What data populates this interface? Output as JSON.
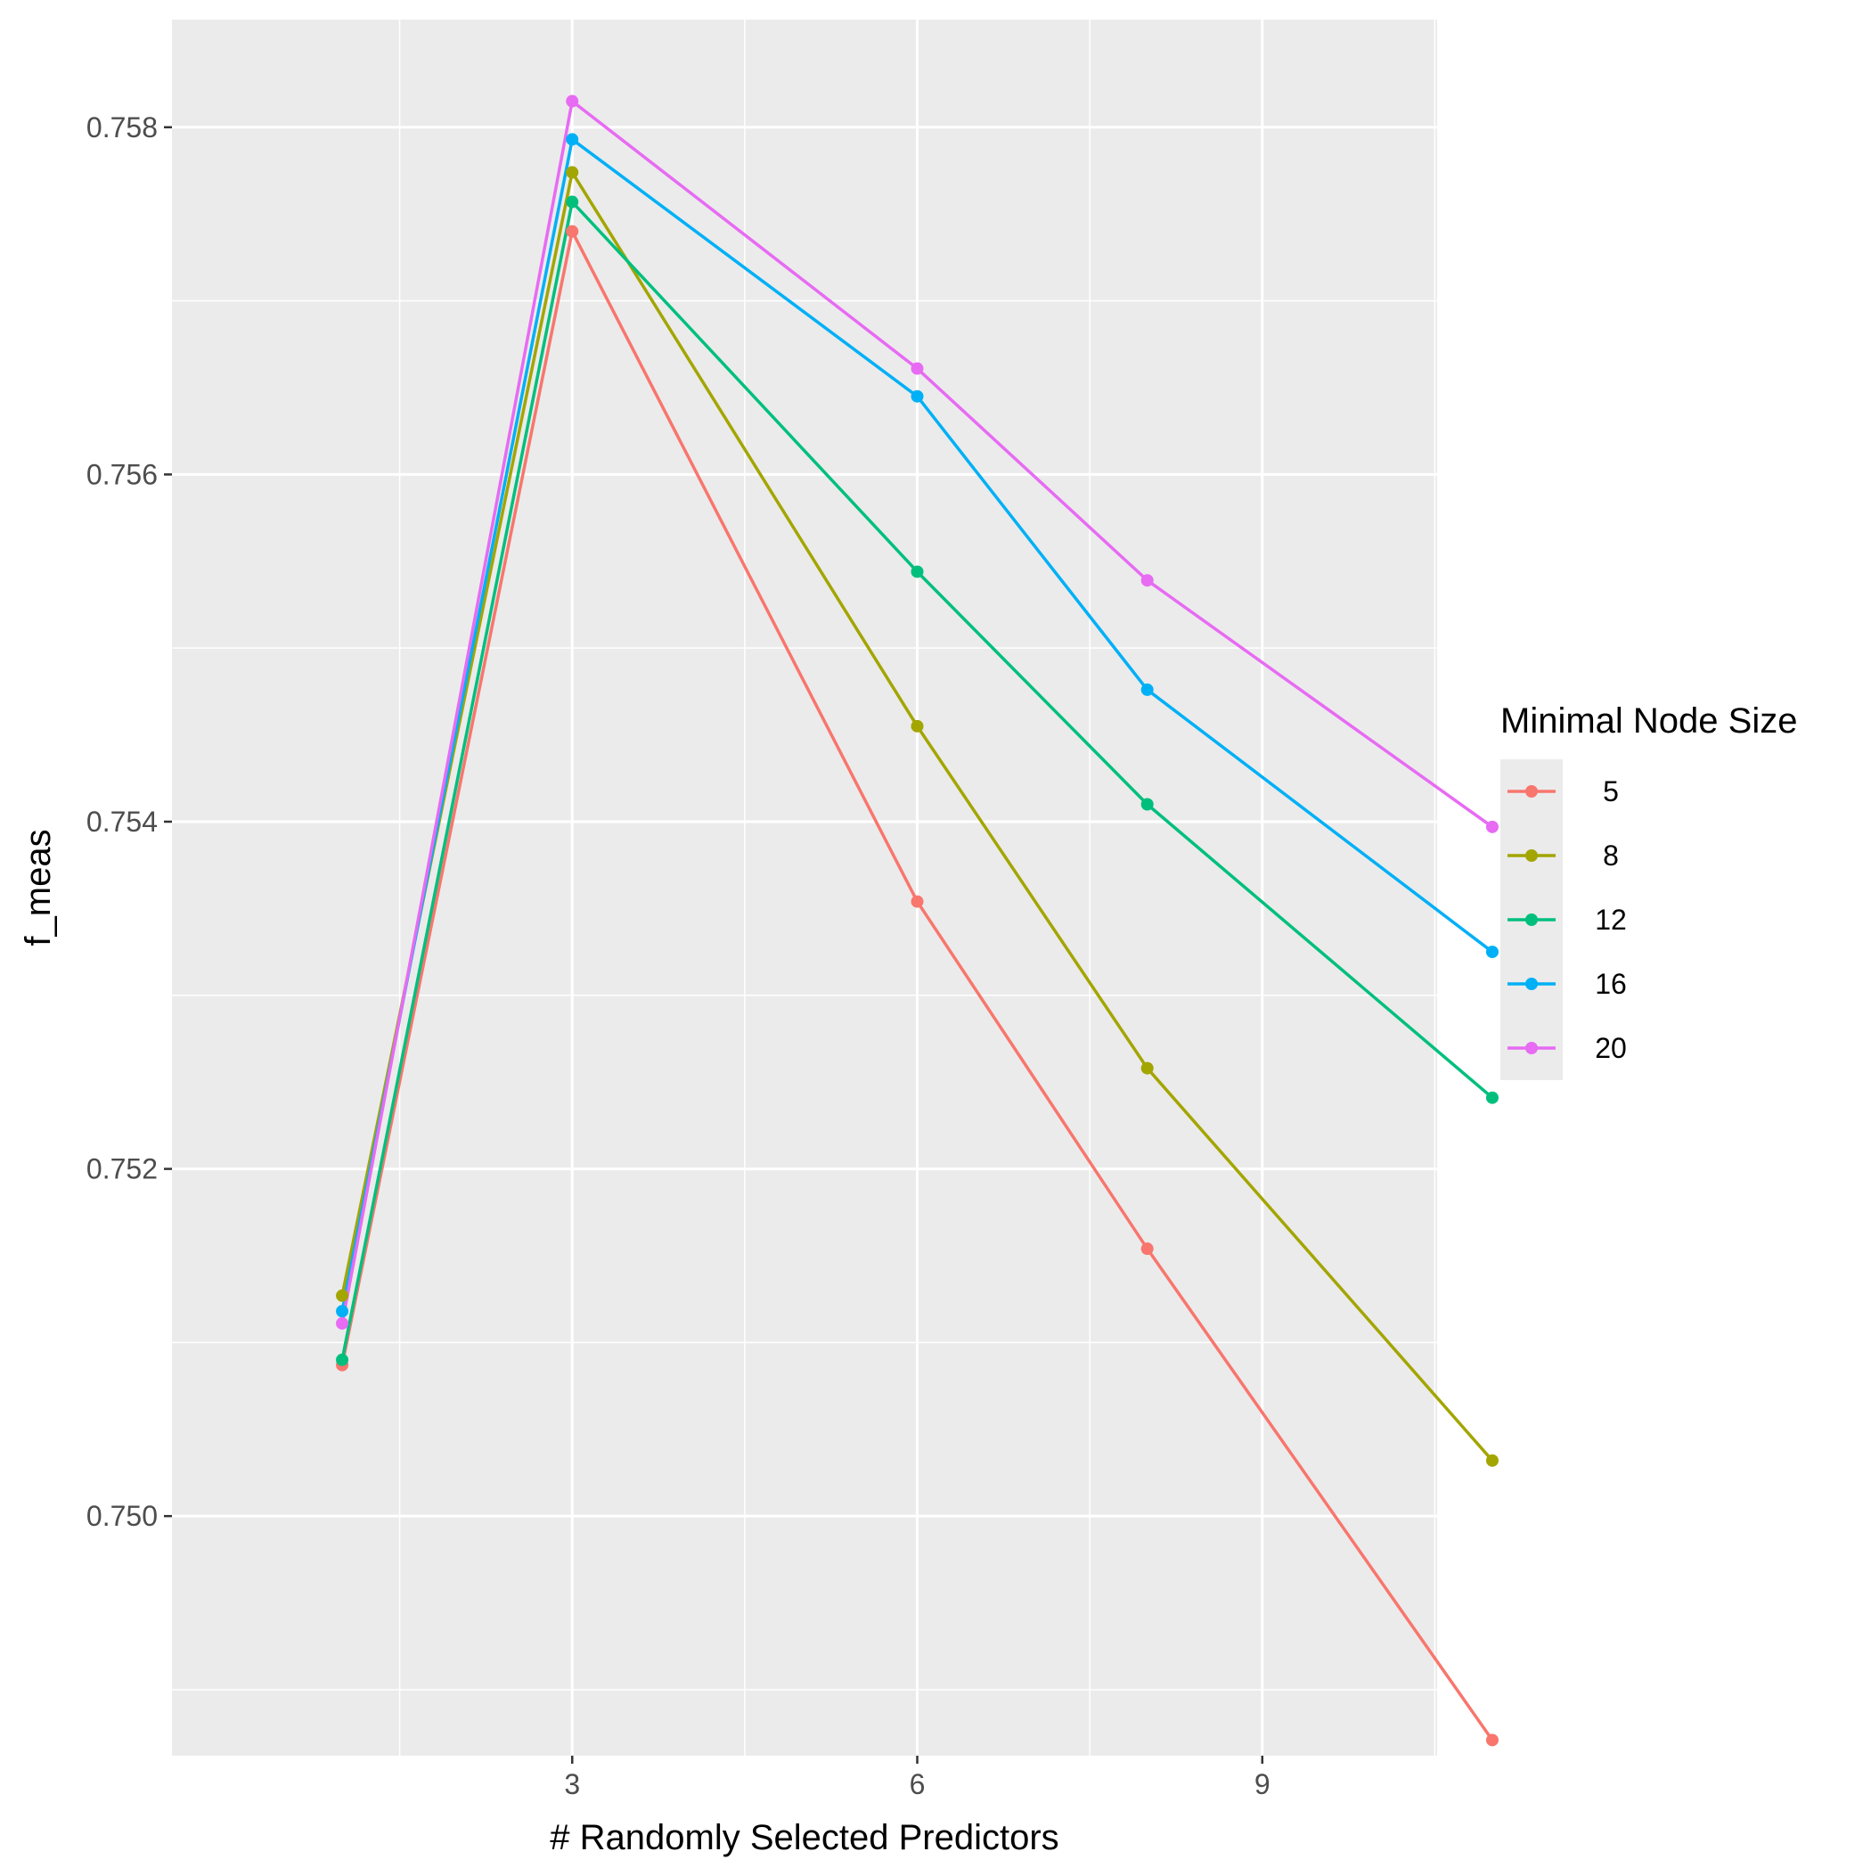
{
  "chart_data": {
    "type": "line",
    "title": "",
    "xlabel": "# Randomly Selected Predictors",
    "ylabel": "f_meas",
    "x": [
      1,
      3,
      6,
      8,
      11
    ],
    "xlim": [
      -0.48,
      10.52
    ],
    "ylim": [
      0.74862,
      0.75862
    ],
    "x_ticks": [
      3,
      6,
      9
    ],
    "x_tick_labels": [
      "3",
      "6",
      "9"
    ],
    "x_minor_ticks": [
      1.5,
      4.5,
      7.5,
      10.5
    ],
    "y_ticks": [
      0.75,
      0.752,
      0.754,
      0.756,
      0.758
    ],
    "y_tick_labels": [
      "0.750",
      "0.752",
      "0.754",
      "0.756",
      "0.758"
    ],
    "y_minor_ticks": [
      0.749,
      0.751,
      0.753,
      0.755,
      0.757
    ],
    "grid": true,
    "panel_background": "#ebebeb",
    "legend": {
      "title": "Minimal Node Size",
      "position": "right",
      "labels": [
        "5",
        "8",
        "12",
        "16",
        "20"
      ]
    },
    "series": [
      {
        "name": "5",
        "color": "#F8766D",
        "values": [
          0.75087,
          0.7574,
          0.75354,
          0.75154,
          0.74871
        ]
      },
      {
        "name": "8",
        "color": "#A3A500",
        "values": [
          0.75127,
          0.75774,
          0.75455,
          0.75258,
          0.75032
        ]
      },
      {
        "name": "12",
        "color": "#00BF7D",
        "values": [
          0.7509,
          0.75757,
          0.75544,
          0.7541,
          0.75241
        ]
      },
      {
        "name": "16",
        "color": "#00B0F6",
        "values": [
          0.75118,
          0.75793,
          0.75645,
          0.75476,
          0.75325
        ]
      },
      {
        "name": "20",
        "color": "#E76BF3",
        "values": [
          0.75111,
          0.75815,
          0.75661,
          0.75539,
          0.75397
        ]
      }
    ]
  }
}
